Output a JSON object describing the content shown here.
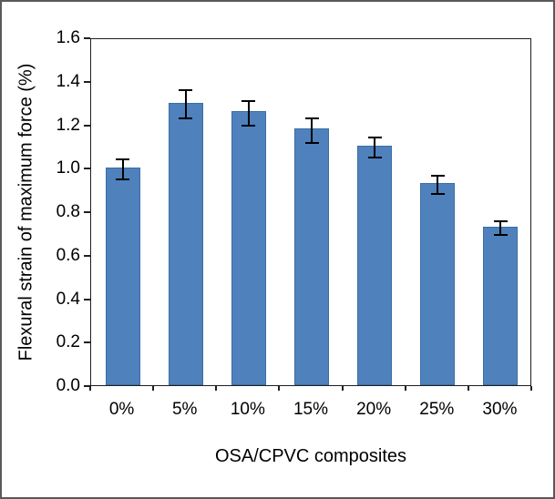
{
  "chart_data": {
    "type": "bar",
    "title": "",
    "xlabel": "OSA/CPVC composites",
    "ylabel": "Flexural strain of maximum force (%)",
    "categories": [
      "0%",
      "5%",
      "10%",
      "15%",
      "20%",
      "25%",
      "30%"
    ],
    "values": [
      1.0,
      1.3,
      1.26,
      1.18,
      1.1,
      0.93,
      0.73
    ],
    "errors": [
      0.05,
      0.07,
      0.06,
      0.06,
      0.05,
      0.045,
      0.035
    ],
    "ylim": [
      0,
      1.6
    ],
    "ytick_step": 0.2,
    "ytick_labels": [
      "0.0",
      "0.2",
      "0.4",
      "0.6",
      "0.8",
      "1.0",
      "1.2",
      "1.4",
      "1.6"
    ],
    "grid": false,
    "legend": "none",
    "bar_color": "#4F81BD",
    "bar_border_color": "#3A6EA5",
    "error_bar_color": "#000000"
  }
}
